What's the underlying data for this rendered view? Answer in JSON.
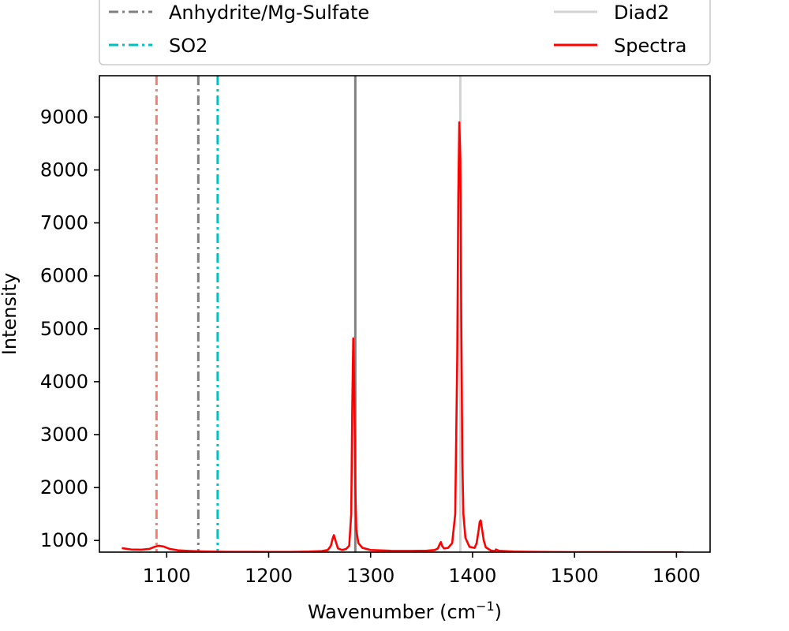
{
  "chart_data": {
    "type": "line",
    "xlabel": "Wavenumber (cm",
    "xlabel_sup": "−1",
    "xlabel_close": ")",
    "ylabel": "Intensity",
    "xlim": [
      1034,
      1633
    ],
    "ylim": [
      780,
      9780
    ],
    "xticks": [
      1100,
      1200,
      1300,
      1400,
      1500,
      1600
    ],
    "yticks": [
      1000,
      2000,
      3000,
      4000,
      5000,
      6000,
      7000,
      8000,
      9000
    ],
    "legend": {
      "placement": "top",
      "entries": [
        {
          "label": "Anhydrite/Mg-Sulfate",
          "color": "#808080",
          "style": "dashdot"
        },
        {
          "label": "Diad2",
          "color": "#d3d3d3",
          "style": "solid"
        },
        {
          "label": "SO2",
          "color": "#00bfbf",
          "style": "dashdot"
        },
        {
          "label": "Spectra",
          "color": "#ff0000",
          "style": "solid"
        }
      ]
    },
    "vlines": [
      {
        "x": 1090,
        "color": "#f08070",
        "style": "dashdot"
      },
      {
        "x": 1131,
        "color": "#808080",
        "style": "dashdot"
      },
      {
        "x": 1150,
        "color": "#00bfbf",
        "style": "dashdot"
      },
      {
        "x": 1285,
        "color": "#808080",
        "style": "solid"
      },
      {
        "x": 1388,
        "color": "#d3d3d3",
        "style": "solid"
      }
    ],
    "series": [
      {
        "name": "Spectra",
        "color": "#ff0000",
        "points": [
          [
            1056,
            855
          ],
          [
            1065,
            830
          ],
          [
            1075,
            825
          ],
          [
            1083,
            840
          ],
          [
            1088,
            880
          ],
          [
            1092,
            900
          ],
          [
            1097,
            885
          ],
          [
            1103,
            840
          ],
          [
            1112,
            812
          ],
          [
            1125,
            800
          ],
          [
            1140,
            790
          ],
          [
            1160,
            785
          ],
          [
            1180,
            785
          ],
          [
            1200,
            783
          ],
          [
            1220,
            783
          ],
          [
            1240,
            790
          ],
          [
            1252,
            800
          ],
          [
            1258,
            820
          ],
          [
            1261,
            900
          ],
          [
            1263,
            1050
          ],
          [
            1264,
            1100
          ],
          [
            1266,
            970
          ],
          [
            1268,
            850
          ],
          [
            1272,
            820
          ],
          [
            1276,
            840
          ],
          [
            1279,
            900
          ],
          [
            1281,
            1500
          ],
          [
            1282,
            3500
          ],
          [
            1283,
            4820
          ],
          [
            1284,
            3800
          ],
          [
            1285,
            2000
          ],
          [
            1286,
            1200
          ],
          [
            1288,
            950
          ],
          [
            1292,
            860
          ],
          [
            1300,
            820
          ],
          [
            1320,
            805
          ],
          [
            1340,
            803
          ],
          [
            1355,
            808
          ],
          [
            1363,
            820
          ],
          [
            1366,
            850
          ],
          [
            1368,
            940
          ],
          [
            1369,
            970
          ],
          [
            1370,
            900
          ],
          [
            1372,
            850
          ],
          [
            1376,
            860
          ],
          [
            1380,
            950
          ],
          [
            1383,
            1500
          ],
          [
            1385,
            4500
          ],
          [
            1386,
            7500
          ],
          [
            1387,
            8900
          ],
          [
            1388,
            8200
          ],
          [
            1389,
            5000
          ],
          [
            1390,
            2500
          ],
          [
            1391,
            1500
          ],
          [
            1393,
            1050
          ],
          [
            1397,
            880
          ],
          [
            1402,
            860
          ],
          [
            1404,
            950
          ],
          [
            1406,
            1200
          ],
          [
            1407,
            1350
          ],
          [
            1408,
            1380
          ],
          [
            1409,
            1250
          ],
          [
            1411,
            1000
          ],
          [
            1413,
            870
          ],
          [
            1418,
            810
          ],
          [
            1422,
            800
          ],
          [
            1423,
            830
          ],
          [
            1426,
            805
          ],
          [
            1440,
            790
          ],
          [
            1460,
            785
          ],
          [
            1480,
            782
          ],
          [
            1500,
            780
          ],
          [
            1530,
            780
          ],
          [
            1560,
            778
          ],
          [
            1590,
            778
          ],
          [
            1607,
            778
          ]
        ]
      }
    ]
  }
}
